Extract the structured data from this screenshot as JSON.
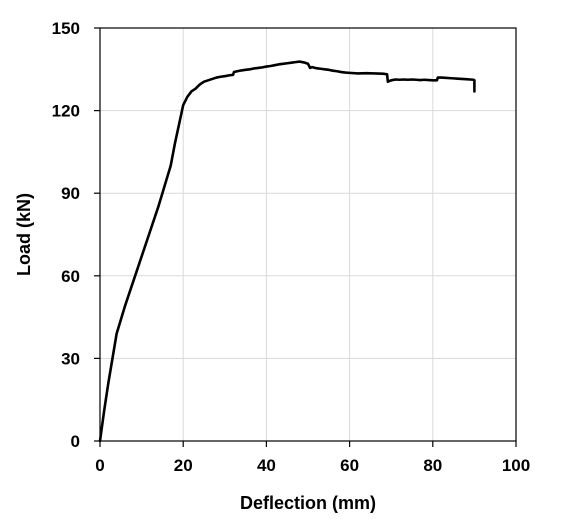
{
  "chart_data": {
    "type": "line",
    "title": "",
    "xlabel": "Deflection (mm)",
    "ylabel": "Load (kN)",
    "xlim": [
      0,
      100
    ],
    "ylim": [
      0,
      150
    ],
    "xticks": [
      0,
      20,
      40,
      60,
      80,
      100
    ],
    "yticks": [
      0,
      30,
      60,
      90,
      120,
      150
    ],
    "grid": true,
    "legend": "none",
    "series": [
      {
        "color": "#000000",
        "x": [
          0,
          1,
          2,
          3,
          4,
          5,
          6,
          8,
          10,
          12,
          14,
          15,
          16,
          17,
          18,
          19,
          20,
          21,
          22,
          23,
          24,
          25,
          26,
          27,
          28,
          29,
          30,
          31,
          32,
          32.2,
          33,
          34,
          35,
          36,
          37,
          38,
          39,
          40,
          41,
          42,
          43,
          44,
          45,
          46,
          47,
          48,
          49,
          50,
          50.5,
          51,
          52,
          53,
          54,
          55,
          56,
          57,
          58,
          59,
          60,
          62,
          64,
          66,
          68,
          69,
          69.2,
          70,
          71,
          72,
          73,
          74,
          75,
          76,
          77,
          78,
          79,
          80,
          81,
          81.2,
          82,
          83,
          84,
          85,
          86,
          87,
          88,
          89,
          89.8,
          90,
          90
        ],
        "y": [
          0,
          11,
          21,
          30,
          39,
          44,
          49,
          58,
          67,
          76,
          85,
          90,
          95,
          100,
          108,
          115,
          122,
          125,
          127,
          128,
          129.5,
          130.5,
          131,
          131.5,
          132,
          132.3,
          132.5,
          132.8,
          133,
          134,
          134.3,
          134.6,
          134.8,
          135,
          135.3,
          135.5,
          135.7,
          136,
          136.2,
          136.5,
          136.8,
          137,
          137.2,
          137.4,
          137.6,
          137.8,
          137.5,
          137,
          135.5,
          135.8,
          135.4,
          135.2,
          135,
          134.8,
          134.5,
          134.3,
          134,
          133.8,
          133.7,
          133.5,
          133.6,
          133.5,
          133.4,
          133.2,
          130.5,
          131,
          131.3,
          131.2,
          131.3,
          131.2,
          131.3,
          131.2,
          131.1,
          131.2,
          131.1,
          131,
          131,
          132,
          132,
          131.9,
          131.8,
          131.7,
          131.6,
          131.5,
          131.4,
          131.3,
          131.2,
          131,
          127
        ]
      }
    ]
  }
}
